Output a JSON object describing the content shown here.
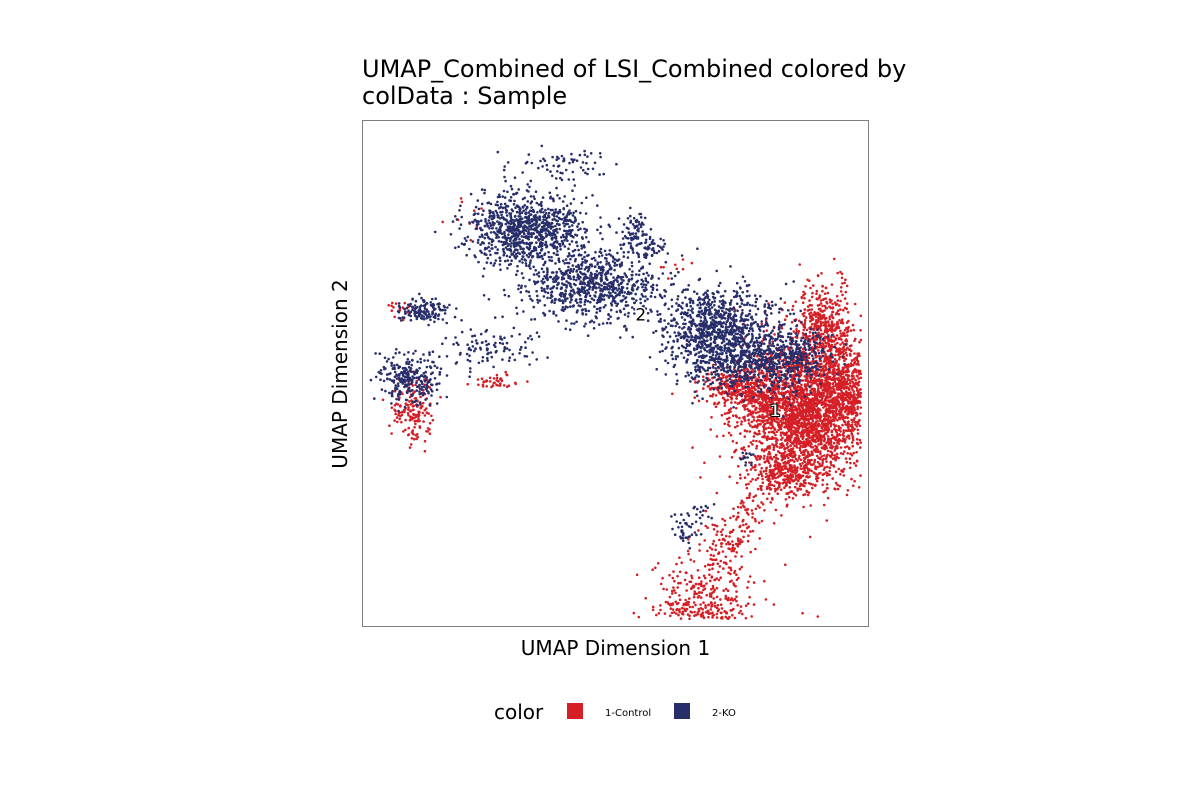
{
  "chart_data": {
    "type": "scatter",
    "title_lines": [
      "UMAP_Combined of LSI_Combined  colored by",
      "colData :  Sample"
    ],
    "xlabel": "UMAP Dimension 1",
    "ylabel": "UMAP Dimension 2",
    "grid": false,
    "legend": {
      "title": "color",
      "placement": "bottom",
      "entries": [
        {
          "label": "1-Control",
          "color": "#d51f26"
        },
        {
          "label": "2-KO",
          "color": "#272e6a"
        }
      ]
    },
    "cluster_labels": [
      {
        "text": "1",
        "style": "halo"
      },
      {
        "text": "2",
        "style": "plain"
      }
    ],
    "series": [
      {
        "name": "1-Control",
        "color": "#d51f26",
        "regions": [
          {
            "cx": 0.75,
            "cy": -0.15,
            "sx": 0.13,
            "sy": 0.14,
            "n": 2600
          },
          {
            "cx": 0.82,
            "cy": 0.18,
            "sx": 0.06,
            "sy": 0.09,
            "n": 450
          },
          {
            "cx": 0.9,
            "cy": -0.05,
            "sx": 0.06,
            "sy": 0.1,
            "n": 400
          },
          {
            "cx": 0.68,
            "cy": -0.4,
            "sx": 0.07,
            "sy": 0.05,
            "n": 250
          },
          {
            "cx": 0.46,
            "cy": -0.05,
            "sx": 0.06,
            "sy": 0.04,
            "n": 220
          },
          {
            "cx": 0.58,
            "cy": -0.1,
            "sx": 0.05,
            "sy": 0.05,
            "n": 180
          },
          {
            "cx": 0.35,
            "cy": -0.95,
            "sx": 0.1,
            "sy": 0.11,
            "n": 500
          },
          {
            "cx": 0.43,
            "cy": -0.68,
            "sx": 0.05,
            "sy": 0.05,
            "n": 90
          },
          {
            "cx": 0.53,
            "cy": -0.55,
            "sx": 0.03,
            "sy": 0.06,
            "n": 50
          },
          {
            "cx": -0.8,
            "cy": -0.14,
            "sx": 0.04,
            "sy": 0.06,
            "n": 160
          },
          {
            "cx": -0.45,
            "cy": -0.03,
            "sx": 0.05,
            "sy": 0.015,
            "n": 40
          },
          {
            "cx": -0.86,
            "cy": 0.24,
            "sx": 0.02,
            "sy": 0.02,
            "n": 15
          },
          {
            "cx": -0.58,
            "cy": 0.62,
            "sx": 0.06,
            "sy": 0.05,
            "n": 10
          },
          {
            "cx": 0.22,
            "cy": 0.42,
            "sx": 0.04,
            "sy": 0.03,
            "n": 8
          }
        ]
      },
      {
        "name": "2-KO",
        "color": "#272e6a",
        "regions": [
          {
            "cx": -0.35,
            "cy": 0.57,
            "sx": 0.12,
            "sy": 0.07,
            "n": 900
          },
          {
            "cx": -0.08,
            "cy": 0.35,
            "sx": 0.14,
            "sy": 0.07,
            "n": 750
          },
          {
            "cx": 0.4,
            "cy": 0.18,
            "sx": 0.11,
            "sy": 0.08,
            "n": 850
          },
          {
            "cx": 0.5,
            "cy": 0.05,
            "sx": 0.12,
            "sy": 0.06,
            "n": 450
          },
          {
            "cx": 0.7,
            "cy": 0.06,
            "sx": 0.08,
            "sy": 0.07,
            "n": 300
          },
          {
            "cx": 0.08,
            "cy": 0.55,
            "sx": 0.03,
            "sy": 0.05,
            "n": 80
          },
          {
            "cx": -0.2,
            "cy": 0.82,
            "sx": 0.1,
            "sy": 0.04,
            "n": 70
          },
          {
            "cx": -0.76,
            "cy": 0.25,
            "sx": 0.05,
            "sy": 0.025,
            "n": 140
          },
          {
            "cx": -0.82,
            "cy": -0.02,
            "sx": 0.06,
            "sy": 0.05,
            "n": 260
          },
          {
            "cx": -0.5,
            "cy": 0.1,
            "sx": 0.1,
            "sy": 0.04,
            "n": 100
          },
          {
            "cx": 0.13,
            "cy": 0.5,
            "sx": 0.04,
            "sy": 0.02,
            "n": 40
          },
          {
            "cx": 0.28,
            "cy": -0.62,
            "sx": 0.03,
            "sy": 0.03,
            "n": 40
          },
          {
            "cx": 0.52,
            "cy": -0.33,
            "sx": 0.02,
            "sy": 0.02,
            "n": 15
          },
          {
            "cx": 0.33,
            "cy": -0.55,
            "sx": 0.03,
            "sy": 0.02,
            "n": 15
          }
        ]
      }
    ]
  }
}
